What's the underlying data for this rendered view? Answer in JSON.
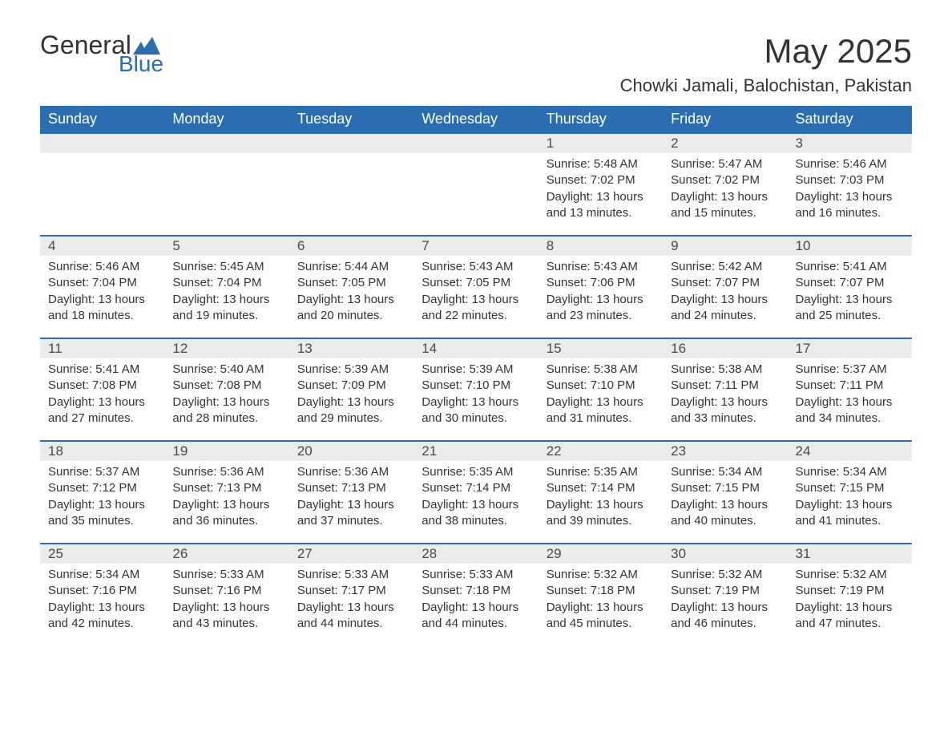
{
  "logo": {
    "general": "General",
    "blue": "Blue",
    "flag_color": "#2a6db0"
  },
  "header": {
    "month_title": "May 2025",
    "location": "Chowki Jamali, Balochistan, Pakistan"
  },
  "calendar": {
    "header_bg": "#2a6db0",
    "header_fg": "#ffffff",
    "daynum_bg": "#ebebeb",
    "daynum_border": "#2a6db0",
    "text_color": "#333333",
    "body_fontsize": 15,
    "header_fontsize": 18,
    "columns": [
      "Sunday",
      "Monday",
      "Tuesday",
      "Wednesday",
      "Thursday",
      "Friday",
      "Saturday"
    ],
    "first_weekday_index": 4,
    "days": [
      {
        "n": 1,
        "sunrise": "5:48 AM",
        "sunset": "7:02 PM",
        "daylight": "13 hours and 13 minutes."
      },
      {
        "n": 2,
        "sunrise": "5:47 AM",
        "sunset": "7:02 PM",
        "daylight": "13 hours and 15 minutes."
      },
      {
        "n": 3,
        "sunrise": "5:46 AM",
        "sunset": "7:03 PM",
        "daylight": "13 hours and 16 minutes."
      },
      {
        "n": 4,
        "sunrise": "5:46 AM",
        "sunset": "7:04 PM",
        "daylight": "13 hours and 18 minutes."
      },
      {
        "n": 5,
        "sunrise": "5:45 AM",
        "sunset": "7:04 PM",
        "daylight": "13 hours and 19 minutes."
      },
      {
        "n": 6,
        "sunrise": "5:44 AM",
        "sunset": "7:05 PM",
        "daylight": "13 hours and 20 minutes."
      },
      {
        "n": 7,
        "sunrise": "5:43 AM",
        "sunset": "7:05 PM",
        "daylight": "13 hours and 22 minutes."
      },
      {
        "n": 8,
        "sunrise": "5:43 AM",
        "sunset": "7:06 PM",
        "daylight": "13 hours and 23 minutes."
      },
      {
        "n": 9,
        "sunrise": "5:42 AM",
        "sunset": "7:07 PM",
        "daylight": "13 hours and 24 minutes."
      },
      {
        "n": 10,
        "sunrise": "5:41 AM",
        "sunset": "7:07 PM",
        "daylight": "13 hours and 25 minutes."
      },
      {
        "n": 11,
        "sunrise": "5:41 AM",
        "sunset": "7:08 PM",
        "daylight": "13 hours and 27 minutes."
      },
      {
        "n": 12,
        "sunrise": "5:40 AM",
        "sunset": "7:08 PM",
        "daylight": "13 hours and 28 minutes."
      },
      {
        "n": 13,
        "sunrise": "5:39 AM",
        "sunset": "7:09 PM",
        "daylight": "13 hours and 29 minutes."
      },
      {
        "n": 14,
        "sunrise": "5:39 AM",
        "sunset": "7:10 PM",
        "daylight": "13 hours and 30 minutes."
      },
      {
        "n": 15,
        "sunrise": "5:38 AM",
        "sunset": "7:10 PM",
        "daylight": "13 hours and 31 minutes."
      },
      {
        "n": 16,
        "sunrise": "5:38 AM",
        "sunset": "7:11 PM",
        "daylight": "13 hours and 33 minutes."
      },
      {
        "n": 17,
        "sunrise": "5:37 AM",
        "sunset": "7:11 PM",
        "daylight": "13 hours and 34 minutes."
      },
      {
        "n": 18,
        "sunrise": "5:37 AM",
        "sunset": "7:12 PM",
        "daylight": "13 hours and 35 minutes."
      },
      {
        "n": 19,
        "sunrise": "5:36 AM",
        "sunset": "7:13 PM",
        "daylight": "13 hours and 36 minutes."
      },
      {
        "n": 20,
        "sunrise": "5:36 AM",
        "sunset": "7:13 PM",
        "daylight": "13 hours and 37 minutes."
      },
      {
        "n": 21,
        "sunrise": "5:35 AM",
        "sunset": "7:14 PM",
        "daylight": "13 hours and 38 minutes."
      },
      {
        "n": 22,
        "sunrise": "5:35 AM",
        "sunset": "7:14 PM",
        "daylight": "13 hours and 39 minutes."
      },
      {
        "n": 23,
        "sunrise": "5:34 AM",
        "sunset": "7:15 PM",
        "daylight": "13 hours and 40 minutes."
      },
      {
        "n": 24,
        "sunrise": "5:34 AM",
        "sunset": "7:15 PM",
        "daylight": "13 hours and 41 minutes."
      },
      {
        "n": 25,
        "sunrise": "5:34 AM",
        "sunset": "7:16 PM",
        "daylight": "13 hours and 42 minutes."
      },
      {
        "n": 26,
        "sunrise": "5:33 AM",
        "sunset": "7:16 PM",
        "daylight": "13 hours and 43 minutes."
      },
      {
        "n": 27,
        "sunrise": "5:33 AM",
        "sunset": "7:17 PM",
        "daylight": "13 hours and 44 minutes."
      },
      {
        "n": 28,
        "sunrise": "5:33 AM",
        "sunset": "7:18 PM",
        "daylight": "13 hours and 44 minutes."
      },
      {
        "n": 29,
        "sunrise": "5:32 AM",
        "sunset": "7:18 PM",
        "daylight": "13 hours and 45 minutes."
      },
      {
        "n": 30,
        "sunrise": "5:32 AM",
        "sunset": "7:19 PM",
        "daylight": "13 hours and 46 minutes."
      },
      {
        "n": 31,
        "sunrise": "5:32 AM",
        "sunset": "7:19 PM",
        "daylight": "13 hours and 47 minutes."
      }
    ],
    "labels": {
      "sunrise": "Sunrise:",
      "sunset": "Sunset:",
      "daylight": "Daylight:"
    }
  }
}
